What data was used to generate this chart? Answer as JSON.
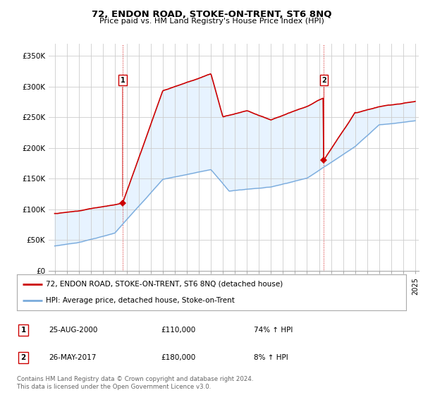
{
  "title": "72, ENDON ROAD, STOKE-ON-TRENT, ST6 8NQ",
  "subtitle": "Price paid vs. HM Land Registry's House Price Index (HPI)",
  "ylabel_ticks": [
    "£0",
    "£50K",
    "£100K",
    "£150K",
    "£200K",
    "£250K",
    "£300K",
    "£350K"
  ],
  "ytick_vals": [
    0,
    50000,
    100000,
    150000,
    200000,
    250000,
    300000,
    350000
  ],
  "ylim": [
    0,
    370000
  ],
  "xlim_start": 1994.5,
  "xlim_end": 2025.3,
  "sale1": {
    "date_year": 2000.65,
    "price": 110000,
    "label": "1"
  },
  "sale2": {
    "date_year": 2017.4,
    "price": 180000,
    "label": "2"
  },
  "legend_label_red": "72, ENDON ROAD, STOKE-ON-TRENT, ST6 8NQ (detached house)",
  "legend_label_blue": "HPI: Average price, detached house, Stoke-on-Trent",
  "table_rows": [
    {
      "num": "1",
      "date": "25-AUG-2000",
      "price": "£110,000",
      "pct": "74% ↑ HPI"
    },
    {
      "num": "2",
      "date": "26-MAY-2017",
      "price": "£180,000",
      "pct": "8% ↑ HPI"
    }
  ],
  "footnote1": "Contains HM Land Registry data © Crown copyright and database right 2024.",
  "footnote2": "This data is licensed under the Open Government Licence v3.0.",
  "red_color": "#cc0000",
  "blue_color": "#7aabdc",
  "fill_color": "#ddeeff",
  "vline_color": "#cc0000",
  "background_color": "#ffffff",
  "grid_color": "#cccccc"
}
